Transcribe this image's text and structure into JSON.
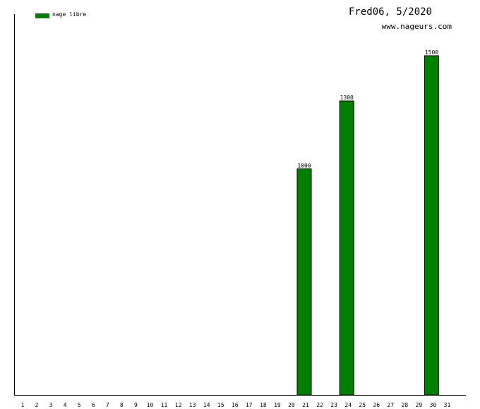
{
  "chart_data": {
    "type": "bar",
    "title": "Fred06, 5/2020",
    "subtitle": "www.nageurs.com",
    "legend": {
      "label": "nage libre",
      "placement": "top-left"
    },
    "categories": [
      "1",
      "2",
      "3",
      "4",
      "5",
      "6",
      "7",
      "8",
      "9",
      "10",
      "11",
      "12",
      "13",
      "14",
      "15",
      "16",
      "17",
      "18",
      "19",
      "20",
      "21",
      "22",
      "23",
      "24",
      "25",
      "26",
      "27",
      "28",
      "29",
      "30",
      "31"
    ],
    "series": [
      {
        "name": "nage libre",
        "color": "#007f00",
        "values": [
          0,
          0,
          0,
          0,
          0,
          0,
          0,
          0,
          0,
          0,
          0,
          0,
          0,
          0,
          0,
          0,
          0,
          0,
          0,
          0,
          1000,
          0,
          0,
          1300,
          0,
          0,
          0,
          0,
          0,
          1500,
          0
        ]
      }
    ],
    "ylim": [
      0,
      1500
    ],
    "grid": false
  }
}
